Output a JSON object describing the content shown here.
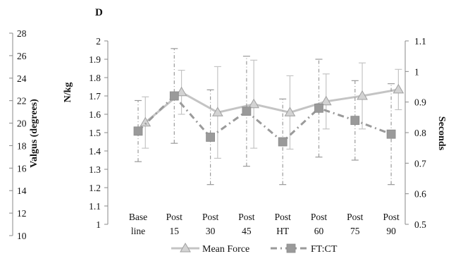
{
  "chart_data": {
    "type": "line",
    "panel_label": "D",
    "categories": [
      [
        "Base",
        "line"
      ],
      [
        "Post",
        "15"
      ],
      [
        "Post",
        "30"
      ],
      [
        "Post",
        "45"
      ],
      [
        "Post",
        "HT"
      ],
      [
        "Post",
        "60"
      ],
      [
        "Post",
        "75"
      ],
      [
        "Post",
        "90"
      ]
    ],
    "axes": {
      "outer_left": {
        "label": "Valgus (degrees)",
        "ylim": [
          10,
          28
        ],
        "ticks": [
          10,
          12,
          14,
          16,
          18,
          20,
          22,
          24,
          26,
          28
        ]
      },
      "left": {
        "label": "N/kg",
        "ylim": [
          1,
          2
        ],
        "ticks": [
          "1",
          "1.1",
          "1.2",
          "1.3",
          "1.4",
          "1.5",
          "1.6",
          "1.7",
          "1.8",
          "1.9",
          "2"
        ]
      },
      "right": {
        "label": "Seconds",
        "ylim": [
          0.5,
          1.1
        ],
        "ticks": [
          "0.5",
          "0.6",
          "0.7",
          "0.8",
          "0.9",
          "1",
          "1.1"
        ]
      }
    },
    "series": [
      {
        "name": "Mean Force",
        "axis": "left",
        "style": "solid",
        "marker": "triangle",
        "color": "#c4c4c4",
        "x_index": [
          0.2,
          1.2,
          2.2,
          3.2,
          4.2,
          5.2,
          6.2,
          7.2
        ],
        "values": [
          1.555,
          1.72,
          1.61,
          1.655,
          1.61,
          1.67,
          1.7,
          1.735
        ],
        "error": [
          0.14,
          0.12,
          0.25,
          0.24,
          0.2,
          0.15,
          0.18,
          0.11
        ]
      },
      {
        "name": "FT:CT",
        "axis": "right",
        "style": "dashdot",
        "marker": "square",
        "color": "#9a9a9a",
        "x_index": [
          0,
          1,
          2,
          3,
          4,
          5,
          6,
          7
        ],
        "values": [
          0.805,
          0.92,
          0.785,
          0.87,
          0.77,
          0.88,
          0.84,
          0.795
        ],
        "error": [
          0.1,
          0.155,
          0.155,
          0.18,
          0.14,
          0.16,
          0.13,
          0.165
        ]
      }
    ],
    "legend": {
      "position": "bottom",
      "entries": [
        "Mean Force",
        "FT:CT"
      ]
    },
    "grid": false
  }
}
